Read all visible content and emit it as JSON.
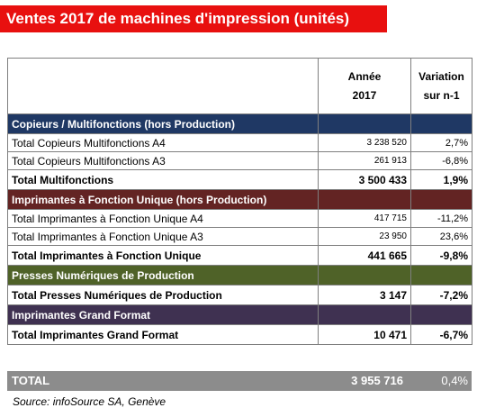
{
  "title": "Ventes 2017 de machines d'impression (unités)",
  "header": {
    "col1": "",
    "col2_line1": "Année",
    "col2_line2": "2017",
    "col3_line1": "Variation",
    "col3_line2": "sur n-1"
  },
  "sections": [
    {
      "title": "Copieurs / Multifonctions (hors Production)",
      "rows": [
        {
          "label": "Total Copieurs Multifonctions A4",
          "value": "3 238 520",
          "variation": "2,7%"
        },
        {
          "label": "Total Copieurs Multifonctions A3",
          "value": "261 913",
          "variation": "-6,8%"
        }
      ],
      "total": {
        "label": "Total Multifonctions",
        "value": "3 500 433",
        "variation": "1,9%"
      }
    },
    {
      "title": "Imprimantes à Fonction Unique (hors Production)",
      "rows": [
        {
          "label": "Total Imprimantes à Fonction Unique A4",
          "value": "417 715",
          "variation": "-11,2%"
        },
        {
          "label": "Total Imprimantes à Fonction Unique A3",
          "value": "23 950",
          "variation": "23,6%"
        }
      ],
      "total": {
        "label": "Total Imprimantes à Fonction Unique",
        "value": "441 665",
        "variation": "-9,8%"
      }
    },
    {
      "title": "Presses Numériques de Production",
      "total": {
        "label": "Total Presses Numériques de Production",
        "value": "3 147",
        "variation": "-7,2%"
      }
    },
    {
      "title": "Imprimantes Grand Format",
      "total": {
        "label": "Total Imprimantes Grand Format",
        "value": "10 471",
        "variation": "-6,7%"
      }
    }
  ],
  "grand_total": {
    "label": "TOTAL",
    "value": "3 955 716",
    "variation": "0,4%"
  },
  "source": "Source: infoSource SA, Genève",
  "colors": {
    "title_bg": "#e8100f",
    "section1": "#1f3864",
    "section2": "#632423",
    "section3": "#4f6228",
    "section4": "#3f3151",
    "total_bg": "#8c8c8c"
  }
}
